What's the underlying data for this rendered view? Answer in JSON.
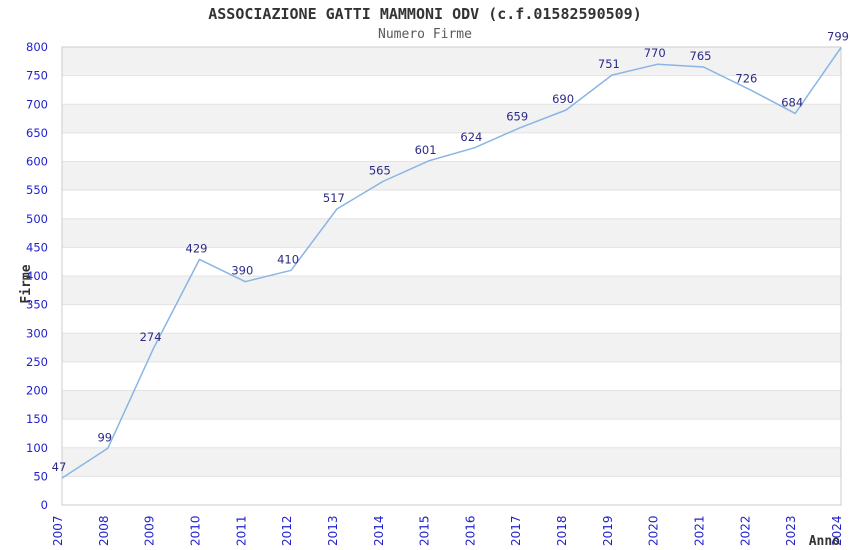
{
  "chart_data": {
    "type": "line",
    "title": "ASSOCIAZIONE GATTI MAMMONI ODV (c.f.01582590509)",
    "subtitle": "Numero Firme",
    "xlabel": "Anno",
    "ylabel": "Firme",
    "x": [
      "2007",
      "2008",
      "2009",
      "2010",
      "2011",
      "2012",
      "2013",
      "2014",
      "2015",
      "2016",
      "2017",
      "2018",
      "2019",
      "2020",
      "2021",
      "2022",
      "2023",
      "2024"
    ],
    "values": [
      47,
      99,
      274,
      429,
      390,
      410,
      517,
      565,
      601,
      624,
      659,
      690,
      751,
      770,
      765,
      726,
      684,
      799
    ],
    "ylim": [
      0,
      800
    ],
    "ytick_step": 50,
    "grid": "horizontal",
    "legend": "none",
    "band_fill": "alternating-50",
    "colors": {
      "line": "#8ab5e5",
      "data_label": "#2a2a85",
      "tick_label": "#2222cc",
      "band": "#f2f2f2",
      "gridline": "#e3e3e3",
      "plot_border": "#cccccc",
      "title": "#333333",
      "subtitle": "#595959",
      "axis_title": "#333333",
      "background": "#ffffff"
    }
  }
}
